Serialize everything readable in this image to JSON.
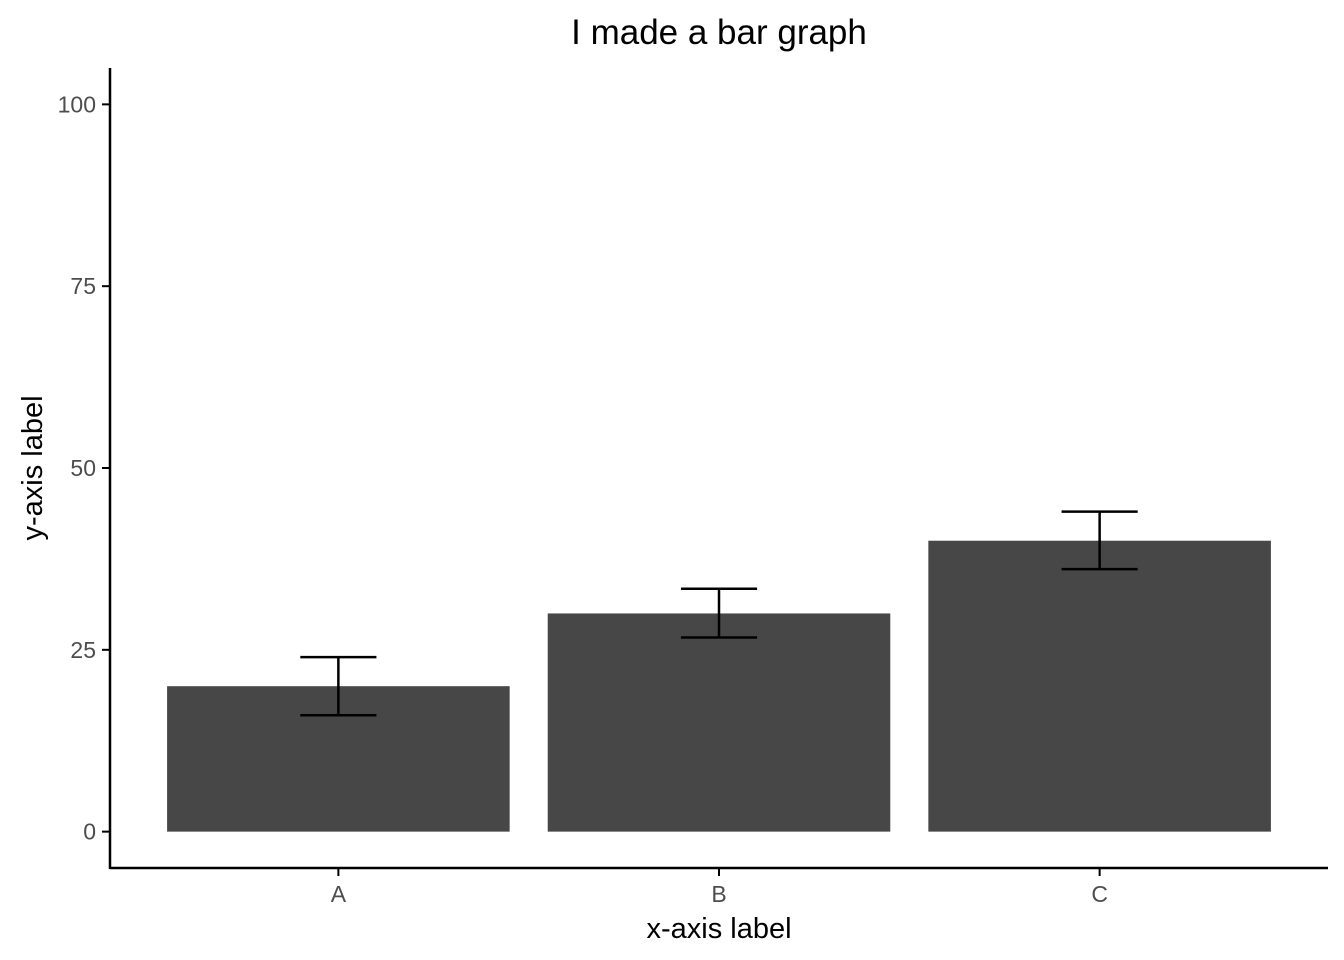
{
  "chart_data": {
    "type": "bar",
    "title": "I made a bar graph",
    "xlabel": "x-axis label",
    "ylabel": "y-axis label",
    "categories": [
      "A",
      "B",
      "C"
    ],
    "values": [
      20,
      30,
      40
    ],
    "error_bars": [
      {
        "low": 16,
        "high": 24
      },
      {
        "low": 26.7,
        "high": 33.4
      },
      {
        "low": 36.1,
        "high": 44
      }
    ],
    "ylim": [
      -5,
      105
    ],
    "yticks": [
      0,
      25,
      50,
      75,
      100
    ],
    "ytick_labels": [
      "0",
      "25",
      "50",
      "75",
      "100"
    ],
    "grid": false,
    "legend": "none",
    "colors": {
      "bar": "#474747",
      "error_bar": "#000000",
      "axis": "#000000",
      "tick_label": "#4d4d4d"
    }
  }
}
